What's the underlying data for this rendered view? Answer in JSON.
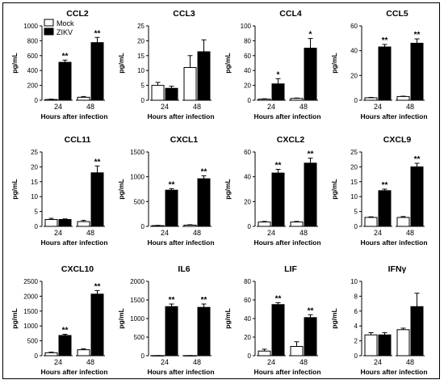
{
  "legend": {
    "items": [
      {
        "label": "Mock",
        "fill": "#ffffff"
      },
      {
        "label": "ZIKV",
        "fill": "#000000"
      }
    ]
  },
  "colors": {
    "mock": "#ffffff",
    "zikv": "#000000",
    "outline": "#000000"
  },
  "chart_data": [
    {
      "type": "bar",
      "title": "CCL2",
      "xlabel": "Hours after infection",
      "ylabel": "pg/mL",
      "ylim": [
        0,
        1000
      ],
      "yticks": [
        0,
        200,
        400,
        600,
        800,
        1000
      ],
      "categories": [
        "24",
        "48"
      ],
      "series": [
        {
          "name": "Mock",
          "values": [
            10,
            40
          ],
          "errors": [
            5,
            10
          ]
        },
        {
          "name": "ZIKV",
          "values": [
            510,
            775
          ],
          "errors": [
            30,
            70
          ]
        }
      ],
      "annotations": [
        "**",
        "**"
      ]
    },
    {
      "type": "bar",
      "title": "CCL3",
      "xlabel": "Hours after infection",
      "ylabel": "pg/mL",
      "ylim": [
        0,
        25
      ],
      "yticks": [
        0,
        5,
        10,
        15,
        20,
        25
      ],
      "categories": [
        "24",
        "48"
      ],
      "series": [
        {
          "name": "Mock",
          "values": [
            5,
            11
          ],
          "errors": [
            1,
            4
          ]
        },
        {
          "name": "ZIKV",
          "values": [
            4,
            16.3
          ],
          "errors": [
            0.7,
            4
          ]
        }
      ],
      "annotations": [
        "",
        ""
      ]
    },
    {
      "type": "bar",
      "title": "CCL4",
      "xlabel": "Hours after infection",
      "ylabel": "pg/mL",
      "ylim": [
        0,
        100
      ],
      "yticks": [
        0,
        20,
        40,
        60,
        80,
        100
      ],
      "categories": [
        "24",
        "48"
      ],
      "series": [
        {
          "name": "Mock",
          "values": [
            1.5,
            2.5
          ],
          "errors": [
            0.5,
            0.5
          ]
        },
        {
          "name": "ZIKV",
          "values": [
            22,
            70
          ],
          "errors": [
            7,
            13
          ]
        }
      ],
      "annotations": [
        "*",
        "*"
      ]
    },
    {
      "type": "bar",
      "title": "CCL5",
      "xlabel": "Hours after infection",
      "ylabel": "pg/mL",
      "ylim": [
        0,
        60
      ],
      "yticks": [
        0,
        20,
        40,
        60
      ],
      "categories": [
        "24",
        "48"
      ],
      "series": [
        {
          "name": "Mock",
          "values": [
            2,
            3
          ],
          "errors": [
            0.3,
            0.3
          ]
        },
        {
          "name": "ZIKV",
          "values": [
            43,
            46
          ],
          "errors": [
            2,
            3.5
          ]
        }
      ],
      "annotations": [
        "**",
        "**"
      ]
    },
    {
      "type": "bar",
      "title": "CCL11",
      "xlabel": "Hours after infection",
      "ylabel": "pg/mL",
      "ylim": [
        0,
        25
      ],
      "yticks": [
        0,
        5,
        10,
        15,
        20,
        25
      ],
      "categories": [
        "24",
        "48"
      ],
      "series": [
        {
          "name": "Mock",
          "values": [
            2.3,
            1.6
          ],
          "errors": [
            0.4,
            0.4
          ]
        },
        {
          "name": "ZIKV",
          "values": [
            2.3,
            18
          ],
          "errors": [
            0.2,
            2.3
          ]
        }
      ],
      "annotations": [
        "",
        "**"
      ]
    },
    {
      "type": "bar",
      "title": "CXCL1",
      "xlabel": "Hours after infection",
      "ylabel": "pg/mL",
      "ylim": [
        0,
        1500
      ],
      "yticks": [
        0,
        500,
        1000,
        1500
      ],
      "categories": [
        "24",
        "48"
      ],
      "series": [
        {
          "name": "Mock",
          "values": [
            15,
            25
          ],
          "errors": [
            5,
            8
          ]
        },
        {
          "name": "ZIKV",
          "values": [
            730,
            960
          ],
          "errors": [
            30,
            60
          ]
        }
      ],
      "annotations": [
        "**",
        "**"
      ]
    },
    {
      "type": "bar",
      "title": "CXCL2",
      "xlabel": "Hours after infection",
      "ylabel": "pg/mL",
      "ylim": [
        0,
        60
      ],
      "yticks": [
        0,
        20,
        40,
        60
      ],
      "categories": [
        "24",
        "48"
      ],
      "series": [
        {
          "name": "Mock",
          "values": [
            3.5,
            3.5
          ],
          "errors": [
            0.5,
            0.5
          ]
        },
        {
          "name": "ZIKV",
          "values": [
            43,
            51
          ],
          "errors": [
            3,
            4
          ]
        }
      ],
      "annotations": [
        "**",
        "**"
      ]
    },
    {
      "type": "bar",
      "title": "CXCL9",
      "xlabel": "Hours after infection",
      "ylabel": "pg/mL",
      "ylim": [
        0,
        25
      ],
      "yticks": [
        0,
        5,
        10,
        15,
        20,
        25
      ],
      "categories": [
        "24",
        "48"
      ],
      "series": [
        {
          "name": "Mock",
          "values": [
            3,
            3
          ],
          "errors": [
            0.2,
            0.3
          ]
        },
        {
          "name": "ZIKV",
          "values": [
            12,
            20
          ],
          "errors": [
            0.5,
            1.2
          ]
        }
      ],
      "annotations": [
        "**",
        "**"
      ]
    },
    {
      "type": "bar",
      "title": "CXCL10",
      "xlabel": "Hours after infection",
      "ylabel": "pg/mL",
      "ylim": [
        0,
        2500
      ],
      "yticks": [
        0,
        500,
        1000,
        1500,
        2000,
        2500
      ],
      "categories": [
        "24",
        "48"
      ],
      "series": [
        {
          "name": "Mock",
          "values": [
            100,
            200
          ],
          "errors": [
            20,
            30
          ]
        },
        {
          "name": "ZIKV",
          "values": [
            680,
            2070
          ],
          "errors": [
            40,
            120
          ]
        }
      ],
      "annotations": [
        "**",
        "**"
      ]
    },
    {
      "type": "bar",
      "title": "IL6",
      "xlabel": "Hours after infection",
      "ylabel": "pg/mL",
      "ylim": [
        0,
        2000
      ],
      "yticks": [
        0,
        500,
        1000,
        1500,
        2000
      ],
      "categories": [
        "24",
        "48"
      ],
      "series": [
        {
          "name": "Mock",
          "values": [
            3,
            3
          ],
          "errors": [
            1,
            1
          ]
        },
        {
          "name": "ZIKV",
          "values": [
            1320,
            1300
          ],
          "errors": [
            70,
            90
          ]
        }
      ],
      "annotations": [
        "**",
        "**"
      ]
    },
    {
      "type": "bar",
      "title": "LIF",
      "xlabel": "Hours after infection",
      "ylabel": "pg/mL",
      "ylim": [
        0,
        80
      ],
      "yticks": [
        0,
        20,
        40,
        60,
        80
      ],
      "categories": [
        "24",
        "48"
      ],
      "series": [
        {
          "name": "Mock",
          "values": [
            5,
            10
          ],
          "errors": [
            2,
            5
          ]
        },
        {
          "name": "ZIKV",
          "values": [
            55,
            41
          ],
          "errors": [
            2,
            3
          ]
        }
      ],
      "annotations": [
        "**",
        "**"
      ]
    },
    {
      "type": "bar",
      "title": "IFNγ",
      "xlabel": "Hours after infection",
      "ylabel": "pg/mL",
      "ylim": [
        0,
        10
      ],
      "yticks": [
        0,
        2,
        4,
        6,
        8,
        10
      ],
      "categories": [
        "24",
        "48"
      ],
      "series": [
        {
          "name": "Mock",
          "values": [
            2.8,
            3.5
          ],
          "errors": [
            0.3,
            0.2
          ]
        },
        {
          "name": "ZIKV",
          "values": [
            2.8,
            6.6
          ],
          "errors": [
            0.3,
            1.8
          ]
        }
      ],
      "annotations": [
        "",
        ""
      ]
    }
  ]
}
